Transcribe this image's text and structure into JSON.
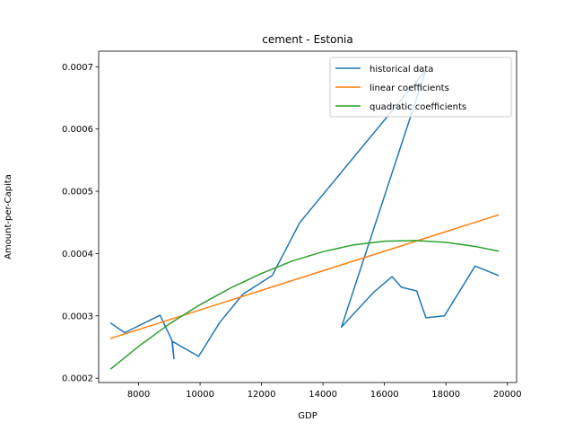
{
  "chart_data": {
    "type": "line",
    "title": "cement - Estonia",
    "xlabel": "GDP",
    "ylabel": "Amount-per-Capita",
    "xlim": [
      6700,
      20300
    ],
    "ylim": [
      0.000193,
      0.000725
    ],
    "xticks": [
      8000,
      10000,
      12000,
      14000,
      16000,
      18000,
      20000
    ],
    "xtick_labels": [
      "8000",
      "10000",
      "12000",
      "14000",
      "16000",
      "18000",
      "20000"
    ],
    "yticks": [
      0.0002,
      0.0003,
      0.0004,
      0.0005,
      0.0006,
      0.0007
    ],
    "ytick_labels": [
      "0.0002",
      "0.0003",
      "0.0004",
      "0.0005",
      "0.0006",
      "0.0007"
    ],
    "grid": false,
    "legend_position": "top-right",
    "series": [
      {
        "name": "historical data",
        "color": "#1f77b4",
        "x": [
          7100,
          7550,
          8700,
          9080,
          9150,
          9100,
          9950,
          10650,
          11400,
          12350,
          13250,
          17350,
          14600,
          15650,
          16250,
          16550,
          17050,
          17350,
          17950,
          18950,
          19700
        ],
        "y": [
          0.000288,
          0.000273,
          0.000301,
          0.000261,
          0.000231,
          0.000259,
          0.000235,
          0.00029,
          0.000335,
          0.000365,
          0.00045,
          0.000695,
          0.000282,
          0.000338,
          0.000363,
          0.000346,
          0.00034,
          0.000297,
          0.0003,
          0.00038,
          0.000365
        ]
      },
      {
        "name": "linear coefficients",
        "color": "#ff7f0e",
        "x": [
          7100,
          19700
        ],
        "y": [
          0.000264,
          0.000462
        ]
      },
      {
        "name": "quadratic coefficients",
        "color": "#2ca02c",
        "x": [
          7100,
          8000,
          9000,
          10000,
          11000,
          12000,
          13000,
          14000,
          15000,
          16000,
          17000,
          18000,
          19000,
          19700
        ],
        "y": [
          0.000215,
          0.000251,
          0.000287,
          0.000318,
          0.000345,
          0.000368,
          0.000388,
          0.000403,
          0.000414,
          0.00042,
          0.000421,
          0.000418,
          0.000411,
          0.000404
        ]
      }
    ]
  }
}
